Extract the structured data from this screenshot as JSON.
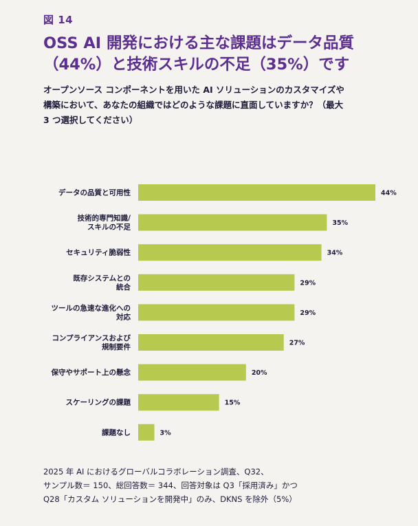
{
  "figure_label": "図 14",
  "title": "OSS AI 開発における主な課題はデータ品質（44%）と技術スキルの不足（35%）です",
  "subtitle": "オープンソース コンポーネントを用いた AI ソリューションのカスタマイズや構築において、あなたの組織ではどのような課題に直面していますか？（最大 3 つ選択してください）",
  "footnote": {
    "line1": "2025 年 AI におけるグローバルコラボレーション調査、Q32、",
    "line2": "サンプル数＝ 150、総回答数＝ 344、回答対象は Q3「採用済み」かつ",
    "line3": "Q28「カスタム ソリューションを開発中」のみ、DKNS を除外（5%）"
  },
  "colors": {
    "bar": "#b8c950",
    "title": "#5b2e8f",
    "background": "#f4f3ef"
  },
  "chart_data": {
    "type": "bar",
    "orientation": "horizontal",
    "categories": [
      [
        "データの品質と可用性"
      ],
      [
        "技術的専門知識/",
        "スキルの不足"
      ],
      [
        "セキュリティ脆弱性"
      ],
      [
        "既存システムとの",
        "統合"
      ],
      [
        "ツールの急速な進化への",
        "対応"
      ],
      [
        "コンプライアンスおよび",
        "規制要件"
      ],
      [
        "保守やサポート上の懸念"
      ],
      [
        "スケーリングの課題"
      ],
      [
        "課題なし"
      ]
    ],
    "values": [
      44,
      35,
      34,
      29,
      29,
      27,
      20,
      15,
      3
    ],
    "value_labels": [
      "44%",
      "35%",
      "34%",
      "29%",
      "29%",
      "27%",
      "20%",
      "15%",
      "3%"
    ],
    "xlim": [
      0,
      44
    ],
    "grid": false
  }
}
